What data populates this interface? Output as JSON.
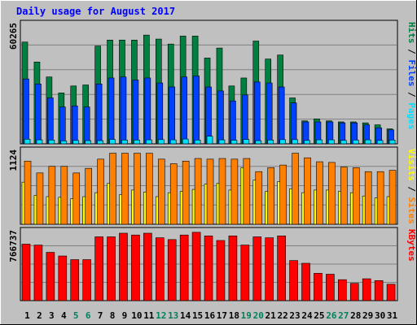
{
  "chart_data": [
    {
      "type": "bar",
      "title": "Daily usage for August 2017",
      "ymax_label": "60265",
      "ylabel_parts": [
        "Hits",
        "/",
        "Files",
        "/",
        "Pages"
      ],
      "categories": [
        "1",
        "2",
        "3",
        "4",
        "5",
        "6",
        "7",
        "8",
        "9",
        "10",
        "11",
        "12",
        "13",
        "14",
        "15",
        "16",
        "17",
        "18",
        "19",
        "20",
        "21",
        "22",
        "23",
        "24",
        "25",
        "26",
        "27",
        "28",
        "29",
        "30",
        "31"
      ],
      "weekend_days": [
        "5",
        "6",
        "12",
        "13",
        "19",
        "20",
        "26",
        "27"
      ],
      "ylim": [
        0,
        60265
      ],
      "series": [
        {
          "name": "Hits",
          "values": [
            51000,
            41000,
            33500,
            25500,
            29000,
            29500,
            49000,
            52000,
            52000,
            52000,
            54500,
            52500,
            50000,
            54000,
            54000,
            43000,
            48000,
            29000,
            33000,
            51500,
            42500,
            44500,
            23000,
            11500,
            12500,
            11500,
            11000,
            11000,
            10500,
            9500,
            7500
          ]
        },
        {
          "name": "Files",
          "values": [
            32500,
            30000,
            23000,
            18500,
            19000,
            18500,
            30000,
            33000,
            33500,
            32000,
            33000,
            30500,
            28500,
            33500,
            34000,
            28500,
            26500,
            21500,
            24500,
            31000,
            30500,
            28500,
            20500,
            11000,
            11000,
            11000,
            10500,
            10500,
            9500,
            8000,
            7000
          ]
        },
        {
          "name": "Pages",
          "values": [
            2300,
            2000,
            1900,
            1500,
            1700,
            1600,
            1600,
            2200,
            1900,
            1900,
            2000,
            2100,
            2000,
            2400,
            1900,
            3800,
            2000,
            1800,
            2200,
            1600,
            1900,
            2100,
            2100,
            1700,
            2000,
            2000,
            1700,
            1900,
            2000,
            1700,
            1900
          ]
        }
      ]
    },
    {
      "type": "bar",
      "ymax_label": "1124",
      "ylabel_parts": [
        "Visits",
        "/",
        "Sites"
      ],
      "categories": [
        "1",
        "2",
        "3",
        "4",
        "5",
        "6",
        "7",
        "8",
        "9",
        "10",
        "11",
        "12",
        "13",
        "14",
        "15",
        "16",
        "17",
        "18",
        "19",
        "20",
        "21",
        "22",
        "23",
        "24",
        "25",
        "26",
        "27",
        "28",
        "29",
        "30",
        "31"
      ],
      "ylim": [
        0,
        1124
      ],
      "series": [
        {
          "name": "Visits",
          "values": [
            640,
            440,
            420,
            410,
            390,
            420,
            480,
            620,
            450,
            520,
            490,
            420,
            480,
            500,
            530,
            610,
            620,
            520,
            860,
            670,
            500,
            650,
            540,
            480,
            520,
            520,
            500,
            480,
            430,
            400,
            420
          ]
        },
        {
          "name": "Sites",
          "values": [
            960,
            780,
            880,
            880,
            780,
            850,
            990,
            1080,
            1080,
            1080,
            1080,
            990,
            920,
            960,
            1000,
            990,
            1000,
            990,
            1000,
            800,
            860,
            900,
            1080,
            1010,
            950,
            940,
            870,
            860,
            800,
            800,
            820
          ]
        }
      ]
    },
    {
      "type": "bar",
      "ymax_label": "766737",
      "ylabel_parts": [
        "KBytes"
      ],
      "categories": [
        "1",
        "2",
        "3",
        "4",
        "5",
        "6",
        "7",
        "8",
        "9",
        "10",
        "11",
        "12",
        "13",
        "14",
        "15",
        "16",
        "17",
        "18",
        "19",
        "20",
        "21",
        "22",
        "23",
        "24",
        "25",
        "26",
        "27",
        "28",
        "29",
        "30",
        "31"
      ],
      "ylim": [
        0,
        766737
      ],
      "series": [
        {
          "name": "KBytes",
          "values": [
            620000,
            610000,
            530000,
            490000,
            450000,
            450000,
            700000,
            700000,
            740000,
            720000,
            740000,
            690000,
            670000,
            720000,
            750000,
            710000,
            660000,
            710000,
            610000,
            700000,
            690000,
            710000,
            440000,
            410000,
            300000,
            290000,
            230000,
            190000,
            240000,
            220000,
            180000
          ]
        }
      ]
    }
  ],
  "colors": {
    "hits": "#008040",
    "files": "#0040ff",
    "pages": "#00e0ff",
    "visits": "#ffff00",
    "sites": "#ff8000",
    "kbytes": "#ff0000",
    "title": "#0000ff",
    "day": "#000000",
    "weekend_day": "#00805c",
    "background": "#c0c0c0",
    "plot": "#c0c0c0",
    "gridline": "#808080"
  }
}
